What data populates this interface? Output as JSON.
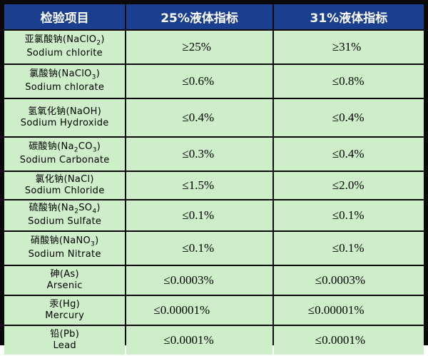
{
  "table": {
    "headers": [
      "检验项目",
      "25%液体指标",
      "31%液体指标"
    ],
    "rows": [
      {
        "name_cn": "亚氯酸钠",
        "formula_pre": "NaClO",
        "formula_sub": "2",
        "formula_post": "",
        "name_en": "Sodium chlorite",
        "v25": "≥25%",
        "v31": "≥31%"
      },
      {
        "name_cn": "氯酸钠",
        "formula_pre": "NaClO",
        "formula_sub": "3",
        "formula_post": "",
        "name_en": "Sodium chlorate",
        "v25": "≤0.6%",
        "v31": "≤0.8%"
      },
      {
        "name_cn": "氢氧化钠",
        "formula_pre": "NaOH",
        "formula_sub": "",
        "formula_post": "",
        "name_en": "Sodium Hydroxide",
        "v25": "≤0.4%",
        "v31": "≤0.4%"
      },
      {
        "name_cn": "碳酸钠",
        "formula_pre": "Na",
        "formula_sub": "2",
        "formula_post": "CO",
        "formula_sub2": "3",
        "name_en": "Sodium Carbonate",
        "v25": "≤0.3%",
        "v31": "≤0.4%"
      },
      {
        "name_cn": "氯化钠",
        "formula_pre": "NaCl",
        "formula_sub": "",
        "formula_post": "",
        "name_en": "Sodium Chloride",
        "v25": "≤1.5%",
        "v31": "≤2.0%"
      },
      {
        "name_cn": "硫酸钠",
        "formula_pre": "Na",
        "formula_sub": "2",
        "formula_post": "SO",
        "formula_sub2": "4",
        "name_en": "Sodium Sulfate",
        "v25": "≤0.1%",
        "v31": "≤0.1%"
      },
      {
        "name_cn": "硝酸钠",
        "formula_pre": "NaNO",
        "formula_sub": "3",
        "formula_post": "",
        "name_en": "Sodium Nitrate",
        "v25": "≤0.1%",
        "v31": "≤0.1%"
      },
      {
        "name_cn": "砷",
        "formula_pre": "As",
        "formula_sub": "",
        "formula_post": "",
        "name_en": "Arsenic",
        "v25": "≤0.0003%",
        "v31": "≤0.0003%"
      },
      {
        "name_cn": "汞",
        "formula_pre": "Hg",
        "formula_sub": "",
        "formula_post": "",
        "name_en": "Mercury",
        "v25": "≤0.00001%",
        "v31": "≤0.00001%"
      },
      {
        "name_cn": "铅",
        "formula_pre": "Pb",
        "formula_sub": "",
        "formula_post": "",
        "name_en": "Lead",
        "v25": "≤0.0001%",
        "v31": "≤0.0001%"
      }
    ]
  },
  "colors": {
    "header_bg": "#1a3f8f",
    "cell_bg": "#cdeec9",
    "border": "#0a0a0a"
  }
}
